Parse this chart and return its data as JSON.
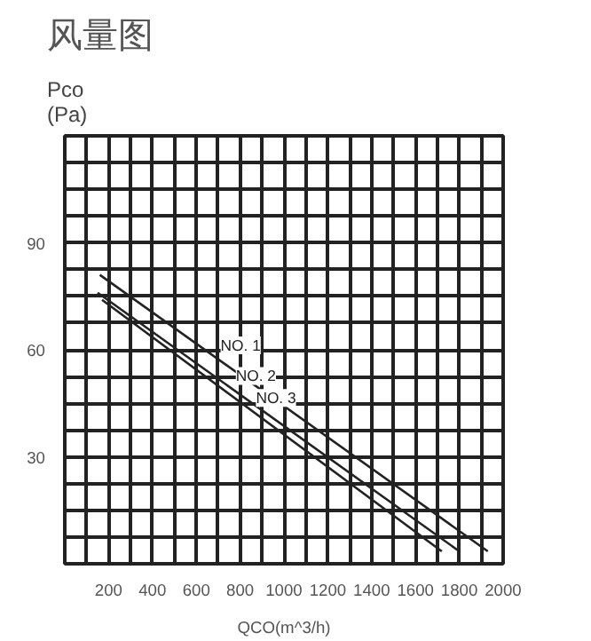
{
  "chart_data": {
    "type": "line",
    "title": "风量图",
    "ylabel": "Pco\n(Pa)",
    "xlabel": "QCO(m^3/h)",
    "series": [
      {
        "name": "NO. 1",
        "color": "#222222",
        "x": [
          160,
          1930
        ],
        "values": [
          81,
          3.5
        ]
      },
      {
        "name": "NO. 2",
        "color": "#222222",
        "x": [
          150,
          1800
        ],
        "values": [
          76,
          3.5
        ]
      },
      {
        "name": "NO. 3",
        "color": "#222222",
        "x": [
          170,
          1720
        ],
        "values": [
          74,
          3.5
        ]
      }
    ],
    "xlim": [
      0,
      2000
    ],
    "xticks": [
      {
        "value": 0,
        "label": null
      },
      {
        "value": 100,
        "label": null
      },
      200,
      {
        "value": 300,
        "label": null
      },
      400,
      {
        "value": 500,
        "label": null
      },
      600,
      {
        "value": 700,
        "label": null
      },
      800,
      {
        "value": 900,
        "label": null
      },
      1000,
      {
        "value": 1100,
        "label": null
      },
      1200,
      {
        "value": 1300,
        "label": null
      },
      1400,
      {
        "value": 1500,
        "label": null
      },
      1600,
      {
        "value": 1700,
        "label": null
      },
      1800,
      {
        "value": 1900,
        "label": null
      },
      2000
    ],
    "ylim": [
      0,
      120
    ],
    "yticks": [
      {
        "value": 0,
        "label": null
      },
      {
        "value": 7.5,
        "label": null
      },
      {
        "value": 15,
        "label": null
      },
      {
        "value": 22.5,
        "label": null
      },
      30,
      {
        "value": 37.5,
        "label": null
      },
      {
        "value": 45,
        "label": null
      },
      {
        "value": 52.5,
        "label": null
      },
      60,
      {
        "value": 67.5,
        "label": null
      },
      {
        "value": 75,
        "label": null
      },
      {
        "value": 82.5,
        "label": null
      },
      90,
      {
        "value": 97.5,
        "label": null
      },
      {
        "value": 105,
        "label": null
      },
      {
        "value": 112.5,
        "label": null
      },
      {
        "value": 120,
        "label": null
      }
    ],
    "grid": true,
    "marker": "none",
    "line_style": "solid"
  }
}
